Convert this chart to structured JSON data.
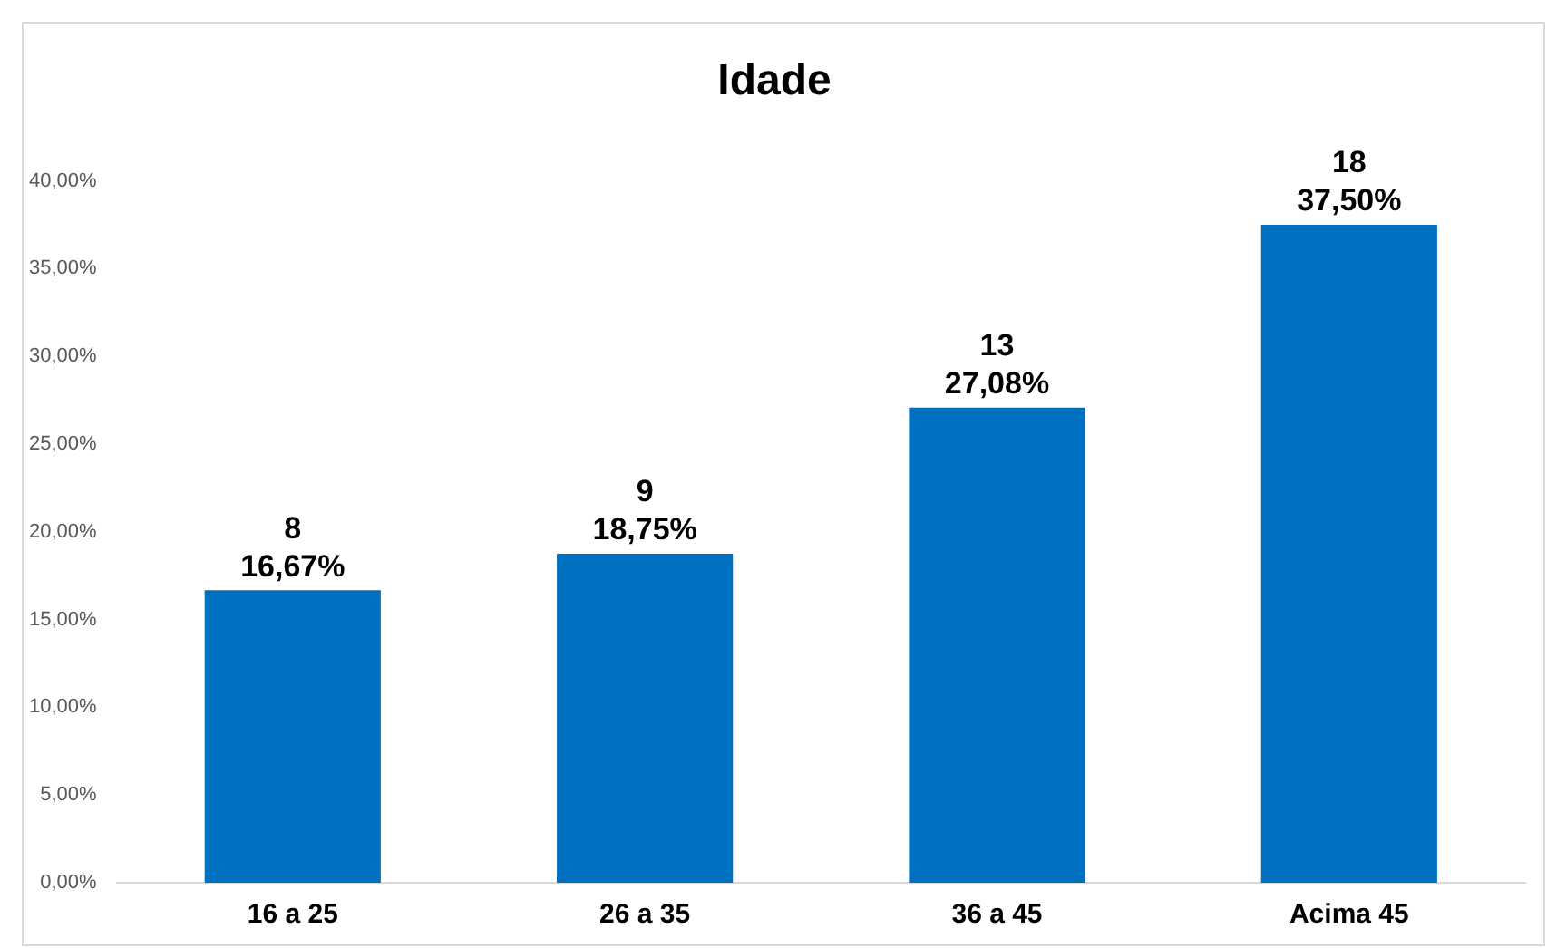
{
  "chart_data": {
    "type": "bar",
    "title": "Idade",
    "categories": [
      "16 a 25",
      "26 a 35",
      "36 a 45",
      "Acima 45"
    ],
    "values": [
      16.67,
      18.75,
      27.08,
      37.5
    ],
    "color": "#0070c0",
    "value_labels": [
      "8\n16,67%",
      "9\n18,75%",
      "13\n27,08%",
      "18\n37,50%"
    ],
    "ylim": [
      0,
      40
    ],
    "yticks": [
      {
        "value": 0,
        "label": "0,00%"
      },
      {
        "value": 5,
        "label": "5,00%"
      },
      {
        "value": 10,
        "label": "10,00%"
      },
      {
        "value": 15,
        "label": "15,00%"
      },
      {
        "value": 20,
        "label": "20,00%"
      },
      {
        "value": 25,
        "label": "25,00%"
      },
      {
        "value": 30,
        "label": "30,00%"
      },
      {
        "value": 35,
        "label": "35,00%"
      },
      {
        "value": 40,
        "label": "40,00%"
      }
    ],
    "grid": false,
    "legend": false
  }
}
